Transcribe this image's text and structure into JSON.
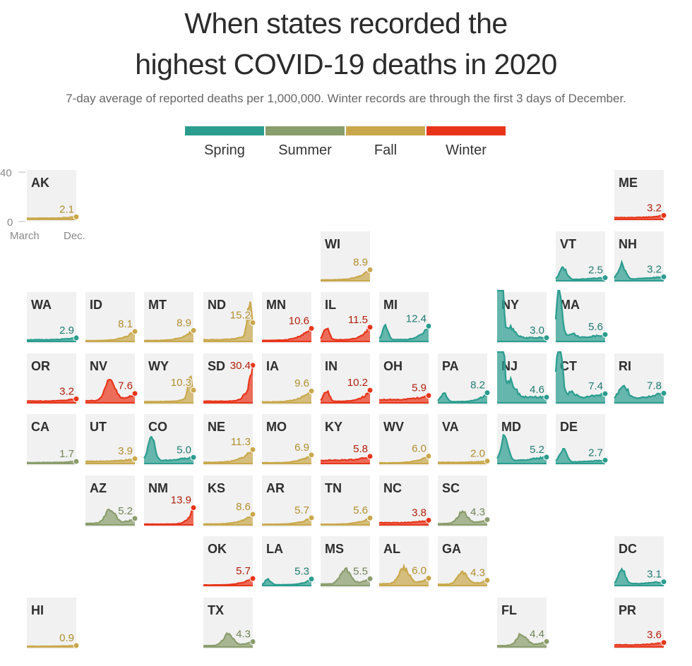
{
  "title_line1": "When states recorded the",
  "title_line2": "highest COVID-19 deaths in 2020",
  "subtitle": "7-day average of reported deaths per 1,000,000. Winter records are through the first 3 days of December.",
  "colors": {
    "Spring": "#2a9d8f",
    "Summer": "#8a9d6c",
    "Fall": "#c9a84c",
    "Winter": "#e8351a"
  },
  "label_colors": {
    "Spring": "#1f7a70",
    "Summer": "#6f8456",
    "Fall": "#b08e2c",
    "Winter": "#b01e0a"
  },
  "legend": [
    "Spring",
    "Summer",
    "Fall",
    "Winter"
  ],
  "axis": {
    "top": "40",
    "zero": "0",
    "start": "March",
    "end": "Dec."
  },
  "chart_data": {
    "type": "area",
    "title": "When states recorded the highest COVID-19 deaths in 2020",
    "ylim": [
      0,
      40
    ],
    "x_range": [
      "March",
      "Dec."
    ],
    "states": [
      {
        "abbr": "AK",
        "value": "2.1",
        "season": "Fall",
        "col": 0,
        "row": 0,
        "shape": "flat"
      },
      {
        "abbr": "ME",
        "value": "3.2",
        "season": "Winter",
        "col": 10,
        "row": 0,
        "shape": "flat"
      },
      {
        "abbr": "WI",
        "value": "8.9",
        "season": "Fall",
        "col": 5,
        "row": 1,
        "shape": "rise"
      },
      {
        "abbr": "VT",
        "value": "2.5",
        "season": "Spring",
        "col": 9,
        "row": 1,
        "shape": "early"
      },
      {
        "abbr": "NH",
        "value": "3.2",
        "season": "Spring",
        "col": 10,
        "row": 1,
        "shape": "early"
      },
      {
        "abbr": "WA",
        "value": "2.9",
        "season": "Spring",
        "col": 0,
        "row": 2,
        "shape": "flat"
      },
      {
        "abbr": "ID",
        "value": "8.1",
        "season": "Fall",
        "col": 1,
        "row": 2,
        "shape": "rise"
      },
      {
        "abbr": "MT",
        "value": "8.9",
        "season": "Fall",
        "col": 2,
        "row": 2,
        "shape": "rise"
      },
      {
        "abbr": "ND",
        "value": "15.2",
        "season": "Fall",
        "col": 3,
        "row": 2,
        "shape": "fallpeak"
      },
      {
        "abbr": "MN",
        "value": "10.6",
        "season": "Winter",
        "col": 4,
        "row": 2,
        "shape": "rise"
      },
      {
        "abbr": "IL",
        "value": "11.5",
        "season": "Winter",
        "col": 5,
        "row": 2,
        "shape": "twohump"
      },
      {
        "abbr": "MI",
        "value": "12.4",
        "season": "Spring",
        "col": 6,
        "row": 2,
        "shape": "twohump"
      },
      {
        "abbr": "NY",
        "value": "3.0",
        "season": "Spring",
        "col": 8,
        "row": 2,
        "shape": "bigspike"
      },
      {
        "abbr": "MA",
        "value": "5.6",
        "season": "Spring",
        "col": 9,
        "row": 2,
        "shape": "bigspike2"
      },
      {
        "abbr": "OR",
        "value": "3.2",
        "season": "Winter",
        "col": 0,
        "row": 3,
        "shape": "flat"
      },
      {
        "abbr": "NV",
        "value": "7.6",
        "season": "Winter",
        "col": 1,
        "row": 3,
        "shape": "summer"
      },
      {
        "abbr": "WY",
        "value": "10.3",
        "season": "Fall",
        "col": 2,
        "row": 3,
        "shape": "fallpeak"
      },
      {
        "abbr": "SD",
        "value": "30.4",
        "season": "Winter",
        "col": 3,
        "row": 3,
        "shape": "steep"
      },
      {
        "abbr": "IA",
        "value": "9.6",
        "season": "Fall",
        "col": 4,
        "row": 3,
        "shape": "rise"
      },
      {
        "abbr": "IN",
        "value": "10.2",
        "season": "Winter",
        "col": 5,
        "row": 3,
        "shape": "twohump"
      },
      {
        "abbr": "OH",
        "value": "5.9",
        "season": "Winter",
        "col": 6,
        "row": 3,
        "shape": "flat"
      },
      {
        "abbr": "PA",
        "value": "8.2",
        "season": "Spring",
        "col": 7,
        "row": 3,
        "shape": "twohump"
      },
      {
        "abbr": "NJ",
        "value": "4.6",
        "season": "Spring",
        "col": 8,
        "row": 3,
        "shape": "bigspike"
      },
      {
        "abbr": "CT",
        "value": "7.4",
        "season": "Spring",
        "col": 9,
        "row": 3,
        "shape": "bigspike2"
      },
      {
        "abbr": "RI",
        "value": "7.8",
        "season": "Spring",
        "col": 10,
        "row": 3,
        "shape": "springmid"
      },
      {
        "abbr": "CA",
        "value": "1.7",
        "season": "Summer",
        "col": 0,
        "row": 4,
        "shape": "flat"
      },
      {
        "abbr": "UT",
        "value": "3.9",
        "season": "Fall",
        "col": 1,
        "row": 4,
        "shape": "flat"
      },
      {
        "abbr": "CO",
        "value": "5.0",
        "season": "Spring",
        "col": 2,
        "row": 4,
        "shape": "early"
      },
      {
        "abbr": "NE",
        "value": "11.3",
        "season": "Fall",
        "col": 3,
        "row": 4,
        "shape": "rise"
      },
      {
        "abbr": "MO",
        "value": "6.9",
        "season": "Fall",
        "col": 4,
        "row": 4,
        "shape": "rise"
      },
      {
        "abbr": "KY",
        "value": "5.8",
        "season": "Winter",
        "col": 5,
        "row": 4,
        "shape": "flat"
      },
      {
        "abbr": "WV",
        "value": "6.0",
        "season": "Fall",
        "col": 6,
        "row": 4,
        "shape": "rise"
      },
      {
        "abbr": "VA",
        "value": "2.0",
        "season": "Fall",
        "col": 7,
        "row": 4,
        "shape": "flat"
      },
      {
        "abbr": "MD",
        "value": "5.2",
        "season": "Spring",
        "col": 8,
        "row": 4,
        "shape": "early"
      },
      {
        "abbr": "DE",
        "value": "2.7",
        "season": "Spring",
        "col": 9,
        "row": 4,
        "shape": "early"
      },
      {
        "abbr": "AZ",
        "value": "5.2",
        "season": "Summer",
        "col": 1,
        "row": 5,
        "shape": "summer"
      },
      {
        "abbr": "NM",
        "value": "13.9",
        "season": "Winter",
        "col": 2,
        "row": 5,
        "shape": "steep"
      },
      {
        "abbr": "KS",
        "value": "8.6",
        "season": "Fall",
        "col": 3,
        "row": 5,
        "shape": "rise"
      },
      {
        "abbr": "AR",
        "value": "5.7",
        "season": "Fall",
        "col": 4,
        "row": 5,
        "shape": "rise"
      },
      {
        "abbr": "TN",
        "value": "5.6",
        "season": "Fall",
        "col": 5,
        "row": 5,
        "shape": "rise"
      },
      {
        "abbr": "NC",
        "value": "3.8",
        "season": "Winter",
        "col": 6,
        "row": 5,
        "shape": "flat"
      },
      {
        "abbr": "SC",
        "value": "4.3",
        "season": "Summer",
        "col": 7,
        "row": 5,
        "shape": "summer"
      },
      {
        "abbr": "OK",
        "value": "5.7",
        "season": "Winter",
        "col": 3,
        "row": 6,
        "shape": "rise"
      },
      {
        "abbr": "LA",
        "value": "5.3",
        "season": "Spring",
        "col": 4,
        "row": 6,
        "shape": "twohump"
      },
      {
        "abbr": "MS",
        "value": "5.5",
        "season": "Summer",
        "col": 5,
        "row": 6,
        "shape": "summer"
      },
      {
        "abbr": "AL",
        "value": "6.0",
        "season": "Fall",
        "col": 6,
        "row": 6,
        "shape": "summer"
      },
      {
        "abbr": "GA",
        "value": "4.3",
        "season": "Fall",
        "col": 7,
        "row": 6,
        "shape": "summer"
      },
      {
        "abbr": "DC",
        "value": "3.1",
        "season": "Spring",
        "col": 10,
        "row": 6,
        "shape": "early"
      },
      {
        "abbr": "HI",
        "value": "0.9",
        "season": "Fall",
        "col": 0,
        "row": 7,
        "shape": "flat"
      },
      {
        "abbr": "TX",
        "value": "4.3",
        "season": "Summer",
        "col": 3,
        "row": 7,
        "shape": "summer"
      },
      {
        "abbr": "FL",
        "value": "4.4",
        "season": "Summer",
        "col": 8,
        "row": 7,
        "shape": "summer"
      },
      {
        "abbr": "PR",
        "value": "3.6",
        "season": "Winter",
        "col": 10,
        "row": 7,
        "shape": "flat"
      }
    ]
  }
}
